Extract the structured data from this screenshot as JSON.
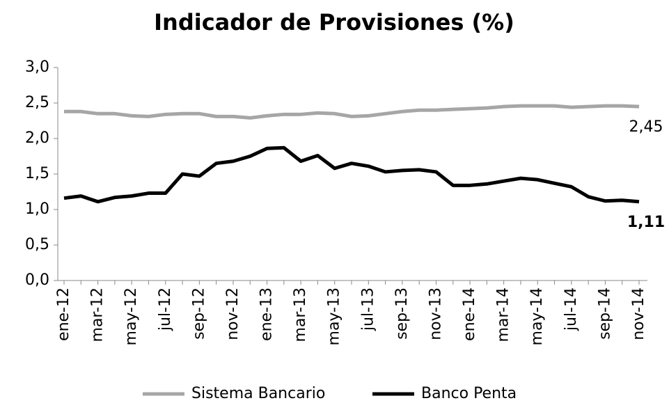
{
  "chart_data": {
    "type": "line",
    "title": "Indicador de Provisiones (%)",
    "categories": [
      "ene-12",
      null,
      "mar-12",
      null,
      "may-12",
      null,
      "jul-12",
      null,
      "sep-12",
      null,
      "nov-12",
      null,
      "ene-13",
      null,
      "mar-13",
      null,
      "may-13",
      null,
      "jul-13",
      null,
      "sep-13",
      null,
      "nov-13",
      null,
      "ene-14",
      null,
      "mar-14",
      null,
      "may-14",
      null,
      "jul-14",
      null,
      "sep-14",
      null,
      "nov-14"
    ],
    "series": [
      {
        "name": "Sistema Bancario",
        "color": "#a6a6a6",
        "values": [
          2.38,
          2.38,
          2.35,
          2.35,
          2.32,
          2.31,
          2.34,
          2.35,
          2.35,
          2.31,
          2.31,
          2.29,
          2.32,
          2.34,
          2.34,
          2.36,
          2.35,
          2.31,
          2.32,
          2.35,
          2.38,
          2.4,
          2.4,
          2.41,
          2.42,
          2.43,
          2.45,
          2.46,
          2.46,
          2.46,
          2.44,
          2.45,
          2.46,
          2.46,
          2.45
        ],
        "value_labels": [
          null,
          null,
          null,
          null,
          null,
          null,
          null,
          null,
          null,
          null,
          null,
          null,
          null,
          null,
          null,
          null,
          null,
          null,
          null,
          null,
          null,
          null,
          null,
          null,
          null,
          null,
          null,
          null,
          null,
          null,
          null,
          null,
          null,
          null,
          "2,45"
        ]
      },
      {
        "name": "Banco Penta",
        "color": "#000000",
        "values": [
          1.16,
          1.19,
          1.11,
          1.17,
          1.19,
          1.23,
          1.23,
          1.5,
          1.47,
          1.65,
          1.68,
          1.75,
          1.86,
          1.87,
          1.68,
          1.76,
          1.58,
          1.65,
          1.61,
          1.53,
          1.55,
          1.56,
          1.53,
          1.34,
          1.34,
          1.36,
          1.4,
          1.44,
          1.42,
          1.37,
          1.32,
          1.18,
          1.12,
          1.13,
          1.11
        ],
        "value_labels": [
          null,
          null,
          null,
          null,
          null,
          null,
          null,
          null,
          null,
          null,
          null,
          null,
          null,
          null,
          null,
          null,
          null,
          null,
          null,
          null,
          null,
          null,
          null,
          null,
          null,
          null,
          null,
          null,
          null,
          null,
          null,
          null,
          null,
          null,
          "1,11"
        ]
      }
    ],
    "ylim": [
      0,
      3
    ],
    "yticks": [
      {
        "value": 0,
        "label": "0,0"
      },
      {
        "value": 0.5,
        "label": "0,5"
      },
      {
        "value": 1,
        "label": "1,0"
      },
      {
        "value": 1.5,
        "label": "1,5"
      },
      {
        "value": 2,
        "label": "2,0"
      },
      {
        "value": 2.5,
        "label": "2,5"
      },
      {
        "value": 3,
        "label": "3,0"
      }
    ],
    "legend": "bottom"
  }
}
